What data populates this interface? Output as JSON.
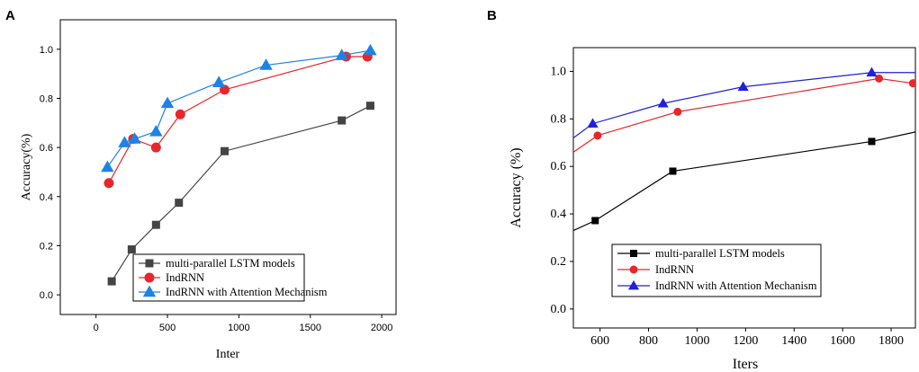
{
  "chart_data": [
    {
      "panel": "A",
      "type": "line",
      "title": "",
      "xlabel": "Inter",
      "ylabel": "Accuracy(%)",
      "xlim": [
        -250,
        2100
      ],
      "ylim": [
        -0.08,
        1.12
      ],
      "xticks": [
        "0",
        "500",
        "1000",
        "1500",
        "2000"
      ],
      "yticks": [
        "0.0",
        "0.2",
        "0.4",
        "0.6",
        "0.8",
        "1.0"
      ],
      "legend_position": "bottom-left",
      "series": [
        {
          "name": "multi-parallel LSTM models",
          "color": "#444444",
          "marker": "square",
          "x": [
            110,
            250,
            420,
            580,
            900,
            1720,
            1920
          ],
          "y": [
            0.055,
            0.185,
            0.285,
            0.375,
            0.585,
            0.71,
            0.77
          ]
        },
        {
          "name": "IndRNN",
          "color": "#e8262b",
          "marker": "circle",
          "x": [
            90,
            260,
            420,
            590,
            900,
            1750,
            1900
          ],
          "y": [
            0.455,
            0.635,
            0.6,
            0.735,
            0.835,
            0.97,
            0.97
          ]
        },
        {
          "name": "IndRNN with Attention  Mechanism",
          "color": "#1e82e6",
          "marker": "triangle",
          "x": [
            80,
            200,
            270,
            420,
            500,
            860,
            1190,
            1720,
            1920
          ],
          "y": [
            0.52,
            0.62,
            0.635,
            0.665,
            0.78,
            0.865,
            0.935,
            0.975,
            0.995
          ]
        }
      ]
    },
    {
      "panel": "B",
      "type": "line",
      "title": "",
      "xlabel": "Iters",
      "ylabel": "Accuracy (%)",
      "xlim": [
        490,
        1900
      ],
      "ylim": [
        -0.08,
        1.1
      ],
      "xticks": [
        "600",
        "800",
        "1000",
        "1200",
        "1400",
        "1600",
        "1800"
      ],
      "yticks": [
        "0.0",
        "0.2",
        "0.4",
        "0.6",
        "0.8",
        "1.0"
      ],
      "legend_position": "bottom-left",
      "series": [
        {
          "name": "multi-parallel LSTM models",
          "color": "#000000",
          "marker": "square",
          "x": [
            490,
            580,
            900,
            1720,
            1900
          ],
          "y": [
            0.33,
            0.372,
            0.58,
            0.705,
            0.745
          ],
          "markers": [
            1,
            2,
            3
          ]
        },
        {
          "name": "IndRNN",
          "color": "#e8262b",
          "marker": "circle",
          "x": [
            490,
            590,
            920,
            1750,
            1890
          ],
          "y": [
            0.66,
            0.73,
            0.83,
            0.97,
            0.95
          ],
          "markers": [
            1,
            2,
            3,
            4
          ]
        },
        {
          "name": "IndRNN with Attention Mechanism",
          "color": "#1f20d8",
          "marker": "triangle",
          "x": [
            490,
            570,
            860,
            1190,
            1720,
            1900
          ],
          "y": [
            0.72,
            0.78,
            0.865,
            0.935,
            0.995,
            0.995
          ],
          "markers": [
            1,
            2,
            3,
            4
          ]
        }
      ]
    }
  ],
  "panels": {
    "a_letter": "A",
    "b_letter": "B"
  }
}
